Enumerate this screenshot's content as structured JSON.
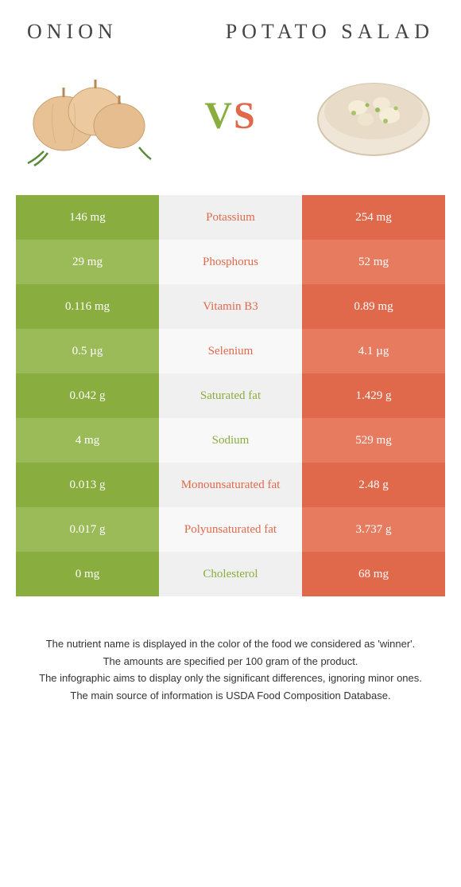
{
  "header": {
    "left_title": "Onion",
    "right_title": "Potato salad",
    "vs_v": "V",
    "vs_s": "S"
  },
  "colors": {
    "left_odd": "#8aad3f",
    "left_even": "#9bbb59",
    "right_odd": "#e1694b",
    "right_even": "#e77b5f",
    "mid_odd": "#f0f0f0",
    "mid_even": "#f8f8f8",
    "text_winner_left": "#8aad3f",
    "text_winner_right": "#e1694b"
  },
  "rows": [
    {
      "left": "146 mg",
      "label": "Potassium",
      "right": "254 mg",
      "winner": "right"
    },
    {
      "left": "29 mg",
      "label": "Phosphorus",
      "right": "52 mg",
      "winner": "right"
    },
    {
      "left": "0.116 mg",
      "label": "Vitamin B3",
      "right": "0.89 mg",
      "winner": "right"
    },
    {
      "left": "0.5 µg",
      "label": "Selenium",
      "right": "4.1 µg",
      "winner": "right"
    },
    {
      "left": "0.042 g",
      "label": "Saturated fat",
      "right": "1.429 g",
      "winner": "left"
    },
    {
      "left": "4 mg",
      "label": "Sodium",
      "right": "529 mg",
      "winner": "left"
    },
    {
      "left": "0.013 g",
      "label": "Monounsaturated fat",
      "right": "2.48 g",
      "winner": "right"
    },
    {
      "left": "0.017 g",
      "label": "Polyunsaturated fat",
      "right": "3.737 g",
      "winner": "right"
    },
    {
      "left": "0 mg",
      "label": "Cholesterol",
      "right": "68 mg",
      "winner": "left"
    }
  ],
  "footnotes": [
    "The nutrient name is displayed in the color of the food we considered as 'winner'.",
    "The amounts are specified per 100 gram of the product.",
    "The infographic aims to display only the significant differences, ignoring minor ones.",
    "The main source of information is USDA Food Composition Database."
  ]
}
